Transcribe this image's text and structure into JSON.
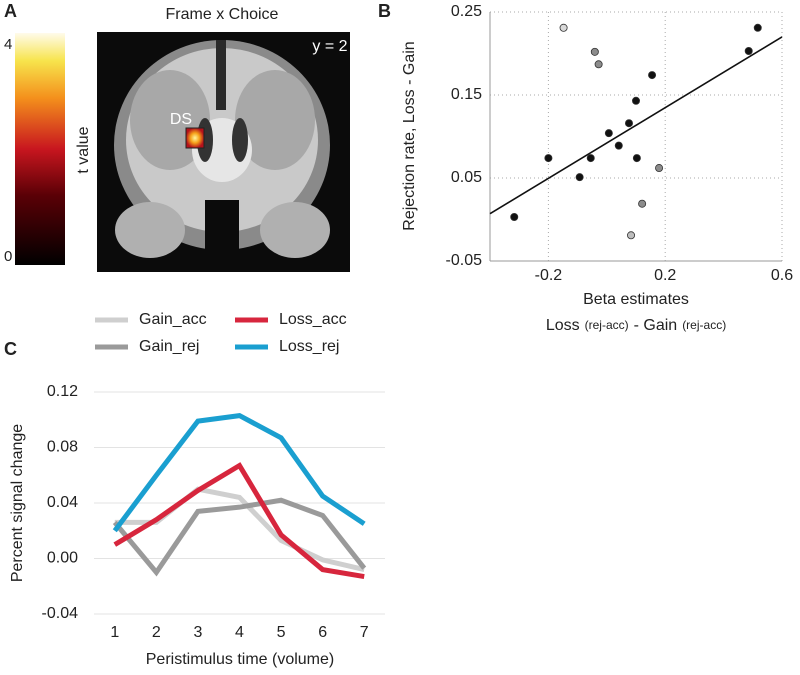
{
  "chart_data": [
    {
      "type": "colorbar",
      "panel": "A",
      "title": "Frame x Choice",
      "annotations": [
        "y = 2",
        "DS"
      ],
      "colorbar_label": "t value",
      "clim": [
        0,
        4
      ],
      "cticks": [
        0,
        4
      ]
    },
    {
      "type": "scatter",
      "panel": "B",
      "y_label": "Rejection rate, Loss - Gain",
      "x_label": "Beta estimates",
      "x_label_2": [
        "Loss",
        "(rej-acc)",
        "- Gain",
        "(rej-acc)"
      ],
      "x": [
        -0.317,
        -0.2,
        -0.093,
        -0.055,
        0.007,
        0.041,
        0.076,
        0.1,
        0.103,
        0.155,
        0.486,
        0.517,
        -0.148,
        -0.041,
        -0.028,
        0.179,
        0.121,
        0.083
      ],
      "values": [
        0.003,
        0.074,
        0.051,
        0.074,
        0.104,
        0.089,
        0.116,
        0.143,
        0.074,
        0.174,
        0.203,
        0.231,
        0.231,
        0.202,
        0.187,
        0.062,
        0.019,
        -0.019
      ],
      "colors": [
        "#111111",
        "#111111",
        "#111111",
        "#111111",
        "#111111",
        "#111111",
        "#111111",
        "#111111",
        "#111111",
        "#111111",
        "#111111",
        "#111111",
        "#d9d9d9",
        "#8c8c8c",
        "#8c8c8c",
        "#8c8c8c",
        "#8c8c8c",
        "#bdbdbd"
      ],
      "fit_x": [
        -0.4,
        0.6
      ],
      "fit_y": [
        0.007,
        0.22
      ],
      "xlim": [
        -0.4,
        0.6
      ],
      "ylim": [
        -0.05,
        0.25
      ],
      "xticks": [
        -0.2,
        0.2,
        0.6
      ],
      "yticks": [
        -0.05,
        0.05,
        0.15,
        0.25
      ],
      "grid": true
    },
    {
      "type": "line",
      "panel": "C",
      "y_label": "Percent signal change",
      "x_label": "Peristimulus time (volume)",
      "x": [
        1,
        2,
        3,
        4,
        5,
        6,
        7
      ],
      "series": [
        {
          "name": "Gain_acc",
          "color": "#cfcfcf",
          "values": [
            0.026,
            0.026,
            0.05,
            0.044,
            0.013,
            -0.001,
            -0.008
          ]
        },
        {
          "name": "Gain_rej",
          "color": "#9a9a9a",
          "values": [
            0.026,
            -0.01,
            0.034,
            0.037,
            0.042,
            0.031,
            -0.007
          ]
        },
        {
          "name": "Loss_acc",
          "color": "#d7263d",
          "values": [
            0.01,
            0.028,
            0.049,
            0.067,
            0.017,
            -0.008,
            -0.013
          ]
        },
        {
          "name": "Loss_rej",
          "color": "#1a9fd0",
          "values": [
            0.02,
            0.06,
            0.099,
            0.103,
            0.087,
            0.045,
            0.025
          ]
        }
      ],
      "xlim": [
        0.5,
        7.5
      ],
      "ylim": [
        -0.04,
        0.12
      ],
      "xticks": [
        1,
        2,
        3,
        4,
        5,
        6,
        7
      ],
      "yticks": [
        -0.04,
        {
          "value": 0,
          "label": "0.00"
        },
        0.04,
        0.08,
        0.12
      ],
      "grid": true
    }
  ]
}
